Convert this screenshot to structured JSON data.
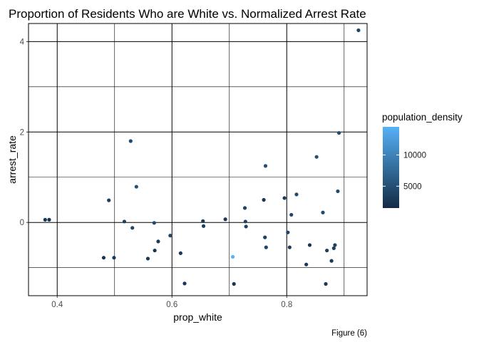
{
  "chart_data": {
    "type": "scatter",
    "title": "Proportion of Residents Who are White vs. Normalized Arrest Rate",
    "xlabel": "prop_white",
    "ylabel": "arrest_rate",
    "caption": "Figure (6)",
    "xlim": [
      0.35,
      0.94
    ],
    "ylim": [
      -1.62,
      4.4
    ],
    "x_ticks": [
      0.4,
      0.6,
      0.8
    ],
    "x_tick_labels": [
      "0.4",
      "0.6",
      "0.8"
    ],
    "y_ticks": [
      0,
      2,
      4
    ],
    "y_tick_labels": [
      "0",
      "2",
      "4"
    ],
    "x_minor": [
      0.5,
      0.7,
      0.9
    ],
    "y_minor": [
      -1,
      1,
      3
    ],
    "grid": true,
    "color": {
      "variable": "population_density",
      "scale": "continuous",
      "low_color": "#132B43",
      "high_color": "#56B1F7",
      "range": [
        1500,
        14500
      ],
      "breaks": [
        5000,
        10000
      ],
      "break_labels": [
        "5000",
        "10000"
      ]
    },
    "legend_position": "right",
    "points": [
      {
        "x": 0.379,
        "y": 0.06,
        "density": 3000
      },
      {
        "x": 0.386,
        "y": 0.06,
        "density": 2500
      },
      {
        "x": 0.481,
        "y": -0.78,
        "density": 2500
      },
      {
        "x": 0.49,
        "y": 0.49,
        "density": 3500
      },
      {
        "x": 0.499,
        "y": -0.78,
        "density": 3000
      },
      {
        "x": 0.517,
        "y": 0.02,
        "density": 3500
      },
      {
        "x": 0.528,
        "y": 1.8,
        "density": 4500
      },
      {
        "x": 0.531,
        "y": -0.12,
        "density": 4000
      },
      {
        "x": 0.538,
        "y": 0.79,
        "density": 5000
      },
      {
        "x": 0.558,
        "y": -0.8,
        "density": 3000
      },
      {
        "x": 0.569,
        "y": -0.01,
        "density": 4500
      },
      {
        "x": 0.57,
        "y": -0.62,
        "density": 2500
      },
      {
        "x": 0.576,
        "y": -0.42,
        "density": 3000
      },
      {
        "x": 0.597,
        "y": -0.29,
        "density": 4000
      },
      {
        "x": 0.615,
        "y": -0.68,
        "density": 3000
      },
      {
        "x": 0.622,
        "y": -1.35,
        "density": 2500
      },
      {
        "x": 0.654,
        "y": 0.03,
        "density": 3000
      },
      {
        "x": 0.655,
        "y": -0.08,
        "density": 3500
      },
      {
        "x": 0.693,
        "y": 0.07,
        "density": 3000
      },
      {
        "x": 0.706,
        "y": -0.76,
        "density": 14500
      },
      {
        "x": 0.708,
        "y": -1.36,
        "density": 2500
      },
      {
        "x": 0.727,
        "y": 0.32,
        "density": 4000
      },
      {
        "x": 0.728,
        "y": 0.02,
        "density": 4000
      },
      {
        "x": 0.729,
        "y": -0.09,
        "density": 3500
      },
      {
        "x": 0.76,
        "y": 0.5,
        "density": 2500
      },
      {
        "x": 0.762,
        "y": -0.33,
        "density": 3500
      },
      {
        "x": 0.763,
        "y": 1.25,
        "density": 5000
      },
      {
        "x": 0.764,
        "y": -0.55,
        "density": 4000
      },
      {
        "x": 0.796,
        "y": 0.54,
        "density": 3000
      },
      {
        "x": 0.802,
        "y": -0.22,
        "density": 4000
      },
      {
        "x": 0.805,
        "y": -0.55,
        "density": 3000
      },
      {
        "x": 0.808,
        "y": 0.17,
        "density": 4000
      },
      {
        "x": 0.817,
        "y": 0.62,
        "density": 4500
      },
      {
        "x": 0.834,
        "y": -0.93,
        "density": 3000
      },
      {
        "x": 0.84,
        "y": -0.5,
        "density": 2500
      },
      {
        "x": 0.852,
        "y": 1.45,
        "density": 5000
      },
      {
        "x": 0.863,
        "y": 0.22,
        "density": 4500
      },
      {
        "x": 0.868,
        "y": -1.36,
        "density": 3000
      },
      {
        "x": 0.87,
        "y": -0.62,
        "density": 3500
      },
      {
        "x": 0.878,
        "y": -0.85,
        "density": 3000
      },
      {
        "x": 0.882,
        "y": -0.57,
        "density": 3500
      },
      {
        "x": 0.884,
        "y": -0.5,
        "density": 3500
      },
      {
        "x": 0.889,
        "y": 0.69,
        "density": 4500
      },
      {
        "x": 0.891,
        "y": 1.98,
        "density": 4500
      },
      {
        "x": 0.925,
        "y": 4.25,
        "density": 4000
      }
    ]
  }
}
